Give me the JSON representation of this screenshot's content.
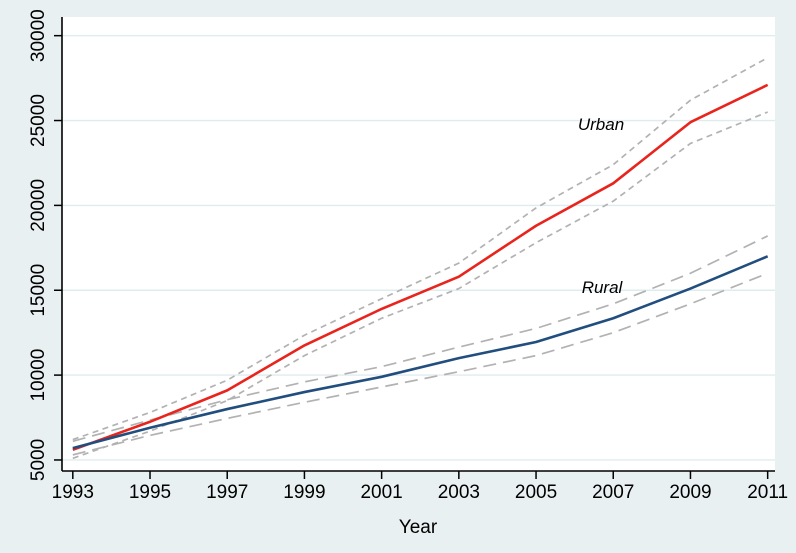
{
  "figure": {
    "background_color": "#e9f0f1",
    "plot_background": "#ffffff",
    "grid_color": "#dfecee",
    "axis_color": "#000000",
    "tick_label_color": "#000000",
    "ci_color": "#b2b2b2",
    "urban_color": "#e8241c",
    "rural_color": "#214e7e"
  },
  "labels": {
    "xlabel": "Year"
  },
  "chart_data": {
    "type": "line",
    "title": "",
    "xlabel": "Year",
    "ylabel": "",
    "x": [
      1993,
      1995,
      1997,
      1999,
      2001,
      2003,
      2005,
      2007,
      2009,
      2011
    ],
    "series": [
      {
        "name": "Urban",
        "color": "#e8241c",
        "style": "solid",
        "values": [
          5600,
          7250,
          9100,
          11750,
          13900,
          15800,
          18800,
          21300,
          24900,
          27100
        ]
      },
      {
        "name": "Urban CI upper",
        "color": "#b2b2b2",
        "style": "dash-short",
        "values": [
          6200,
          7800,
          9700,
          12350,
          14500,
          16600,
          19850,
          22400,
          26200,
          28700
        ]
      },
      {
        "name": "Urban CI lower",
        "color": "#b2b2b2",
        "style": "dash-short",
        "values": [
          5100,
          6700,
          8500,
          11150,
          13350,
          15100,
          17800,
          20250,
          23650,
          25500
        ]
      },
      {
        "name": "Rural",
        "color": "#214e7e",
        "style": "solid",
        "values": [
          5700,
          6900,
          8000,
          9000,
          9900,
          11000,
          11950,
          13350,
          15100,
          17000
        ]
      },
      {
        "name": "Rural CI upper",
        "color": "#b2b2b2",
        "style": "dash-long",
        "values": [
          6100,
          7350,
          8550,
          9600,
          10500,
          11650,
          12750,
          14200,
          16000,
          18200
        ]
      },
      {
        "name": "Rural CI lower",
        "color": "#b2b2b2",
        "style": "dash-long",
        "values": [
          5300,
          6450,
          7450,
          8400,
          9300,
          10200,
          11150,
          12500,
          14200,
          16000
        ]
      }
    ],
    "x_ticks": [
      1993,
      1995,
      1997,
      1999,
      2001,
      2003,
      2005,
      2007,
      2009,
      2011
    ],
    "x_tick_labels": [
      "1993",
      "1995",
      "1997",
      "1999",
      "2001",
      "2003",
      "2005",
      "2007",
      "2009",
      "2011"
    ],
    "y_ticks": [
      5000,
      10000,
      15000,
      20000,
      25000,
      30000
    ],
    "y_tick_labels": [
      "5000",
      "10000",
      "15000",
      "20000",
      "25000",
      "30000"
    ],
    "xlim": [
      1992.72,
      2011.19
    ],
    "ylim": [
      4350,
      31100
    ],
    "grid": "horizontal-only",
    "legend": "none",
    "annotations": [
      {
        "text": "Urban",
        "x": 2006.6,
        "y": 24800,
        "style": "italic"
      },
      {
        "text": "Rural",
        "x": 2006.6,
        "y": 15250,
        "style": "italic"
      }
    ]
  }
}
